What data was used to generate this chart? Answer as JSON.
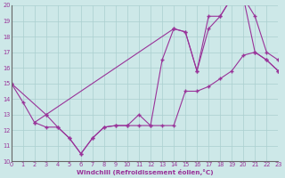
{
  "xlabel": "Windchill (Refroidissement éolien,°C)",
  "bg_color": "#cde8e8",
  "line_color": "#993399",
  "grid_color": "#aacfcf",
  "xmin": 0,
  "xmax": 23,
  "ymin": 10,
  "ymax": 20,
  "yticks": [
    10,
    11,
    12,
    13,
    14,
    15,
    16,
    17,
    18,
    19,
    20
  ],
  "xticks": [
    0,
    1,
    2,
    3,
    4,
    5,
    6,
    7,
    8,
    9,
    10,
    11,
    12,
    13,
    14,
    15,
    16,
    17,
    18,
    19,
    20,
    21,
    22,
    23
  ],
  "series": [
    {
      "x": [
        0,
        1,
        2,
        3,
        4,
        5,
        6,
        7,
        8,
        9,
        10,
        11,
        12,
        13,
        14,
        15,
        16,
        17,
        18,
        19,
        20,
        21,
        22,
        23
      ],
      "y": [
        15,
        13.8,
        12.5,
        13.0,
        12.2,
        11.5,
        10.5,
        11.5,
        12.2,
        12.3,
        12.3,
        13.0,
        12.3,
        12.3,
        12.3,
        14.5,
        14.5,
        14.8,
        15.3,
        15.8,
        16.8,
        17.0,
        16.5,
        15.8
      ]
    },
    {
      "x": [
        0,
        3,
        14,
        15,
        16,
        17,
        18,
        19,
        20,
        21,
        22,
        23
      ],
      "y": [
        15,
        13.0,
        18.5,
        18.3,
        15.8,
        18.5,
        19.3,
        20.5,
        20.5,
        19.3,
        17.0,
        16.5
      ]
    },
    {
      "x": [
        2,
        3,
        4,
        5,
        6,
        7,
        8,
        9,
        10,
        11,
        12,
        13,
        14,
        15,
        16,
        17,
        18,
        19,
        20,
        21,
        22,
        23
      ],
      "y": [
        12.5,
        12.2,
        12.2,
        11.5,
        10.5,
        11.5,
        12.2,
        12.3,
        12.3,
        12.3,
        12.3,
        16.5,
        18.5,
        18.3,
        15.8,
        19.3,
        19.3,
        20.5,
        20.5,
        17.0,
        16.5,
        15.8
      ]
    }
  ]
}
